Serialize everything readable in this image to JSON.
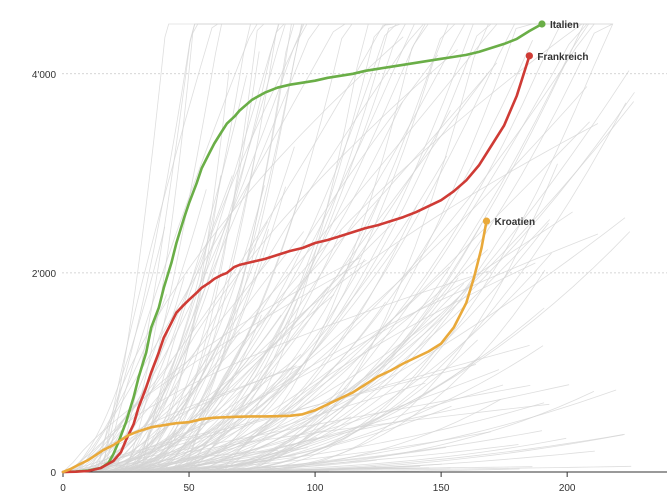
{
  "chart_data": {
    "type": "line",
    "title": "",
    "xlabel": "",
    "ylabel": "",
    "xlim": [
      0,
      240
    ],
    "ylim": [
      0,
      4500
    ],
    "clip_y": 4500,
    "x_ticks": [
      0,
      50,
      100,
      150,
      200
    ],
    "x_tick_labels": [
      "0",
      "50",
      "100",
      "150",
      "200"
    ],
    "y_ticks": [
      0,
      2000,
      4000
    ],
    "y_tick_labels": [
      "0",
      "2'000",
      "4'000"
    ],
    "grid": "horizontal-dotted",
    "background_color": "#d3d3d3",
    "series": [
      {
        "name": "Italien",
        "color": "#6aae47",
        "points": [
          [
            0,
            0
          ],
          [
            5,
            5
          ],
          [
            10,
            15
          ],
          [
            15,
            40
          ],
          [
            18,
            90
          ],
          [
            20,
            180
          ],
          [
            22,
            300
          ],
          [
            25,
            500
          ],
          [
            28,
            750
          ],
          [
            30,
            950
          ],
          [
            33,
            1200
          ],
          [
            35,
            1450
          ],
          [
            38,
            1650
          ],
          [
            40,
            1850
          ],
          [
            43,
            2100
          ],
          [
            45,
            2300
          ],
          [
            48,
            2550
          ],
          [
            50,
            2700
          ],
          [
            53,
            2900
          ],
          [
            55,
            3050
          ],
          [
            58,
            3200
          ],
          [
            60,
            3300
          ],
          [
            63,
            3420
          ],
          [
            65,
            3500
          ],
          [
            68,
            3570
          ],
          [
            70,
            3630
          ],
          [
            75,
            3740
          ],
          [
            80,
            3810
          ],
          [
            85,
            3860
          ],
          [
            90,
            3890
          ],
          [
            95,
            3910
          ],
          [
            100,
            3930
          ],
          [
            105,
            3960
          ],
          [
            110,
            3980
          ],
          [
            115,
            4000
          ],
          [
            120,
            4030
          ],
          [
            125,
            4050
          ],
          [
            130,
            4070
          ],
          [
            135,
            4090
          ],
          [
            140,
            4110
          ],
          [
            145,
            4130
          ],
          [
            150,
            4150
          ],
          [
            155,
            4170
          ],
          [
            160,
            4190
          ],
          [
            165,
            4220
          ],
          [
            170,
            4260
          ],
          [
            175,
            4300
          ],
          [
            180,
            4350
          ],
          [
            185,
            4430
          ],
          [
            190,
            4500
          ]
        ]
      },
      {
        "name": "Frankreich",
        "color": "#cf3b35",
        "points": [
          [
            0,
            0
          ],
          [
            5,
            3
          ],
          [
            10,
            10
          ],
          [
            15,
            40
          ],
          [
            20,
            110
          ],
          [
            23,
            200
          ],
          [
            25,
            320
          ],
          [
            28,
            480
          ],
          [
            30,
            650
          ],
          [
            33,
            850
          ],
          [
            35,
            1000
          ],
          [
            38,
            1200
          ],
          [
            40,
            1350
          ],
          [
            43,
            1500
          ],
          [
            45,
            1600
          ],
          [
            48,
            1680
          ],
          [
            50,
            1730
          ],
          [
            53,
            1800
          ],
          [
            55,
            1850
          ],
          [
            58,
            1900
          ],
          [
            60,
            1940
          ],
          [
            63,
            1980
          ],
          [
            65,
            2000
          ],
          [
            68,
            2060
          ],
          [
            70,
            2080
          ],
          [
            75,
            2110
          ],
          [
            80,
            2140
          ],
          [
            85,
            2180
          ],
          [
            90,
            2220
          ],
          [
            95,
            2250
          ],
          [
            100,
            2300
          ],
          [
            105,
            2330
          ],
          [
            110,
            2370
          ],
          [
            115,
            2410
          ],
          [
            120,
            2450
          ],
          [
            125,
            2480
          ],
          [
            130,
            2520
          ],
          [
            135,
            2560
          ],
          [
            140,
            2610
          ],
          [
            145,
            2670
          ],
          [
            150,
            2730
          ],
          [
            155,
            2820
          ],
          [
            160,
            2930
          ],
          [
            165,
            3080
          ],
          [
            170,
            3280
          ],
          [
            175,
            3480
          ],
          [
            180,
            3780
          ],
          [
            185,
            4180
          ]
        ]
      },
      {
        "name": "Kroatien",
        "color": "#e9a93a",
        "points": [
          [
            0,
            0
          ],
          [
            3,
            30
          ],
          [
            6,
            70
          ],
          [
            10,
            120
          ],
          [
            13,
            170
          ],
          [
            16,
            220
          ],
          [
            20,
            270
          ],
          [
            23,
            320
          ],
          [
            26,
            370
          ],
          [
            30,
            410
          ],
          [
            35,
            450
          ],
          [
            40,
            470
          ],
          [
            45,
            490
          ],
          [
            50,
            500
          ],
          [
            55,
            530
          ],
          [
            60,
            545
          ],
          [
            65,
            550
          ],
          [
            70,
            555
          ],
          [
            75,
            558
          ],
          [
            80,
            558
          ],
          [
            85,
            560
          ],
          [
            90,
            565
          ],
          [
            95,
            580
          ],
          [
            100,
            620
          ],
          [
            105,
            680
          ],
          [
            110,
            740
          ],
          [
            115,
            800
          ],
          [
            120,
            880
          ],
          [
            125,
            960
          ],
          [
            130,
            1020
          ],
          [
            135,
            1090
          ],
          [
            140,
            1150
          ],
          [
            145,
            1210
          ],
          [
            150,
            1290
          ],
          [
            155,
            1450
          ],
          [
            160,
            1700
          ],
          [
            163,
            1950
          ],
          [
            166,
            2250
          ],
          [
            168,
            2520
          ]
        ]
      }
    ],
    "background_line_count": 180
  }
}
